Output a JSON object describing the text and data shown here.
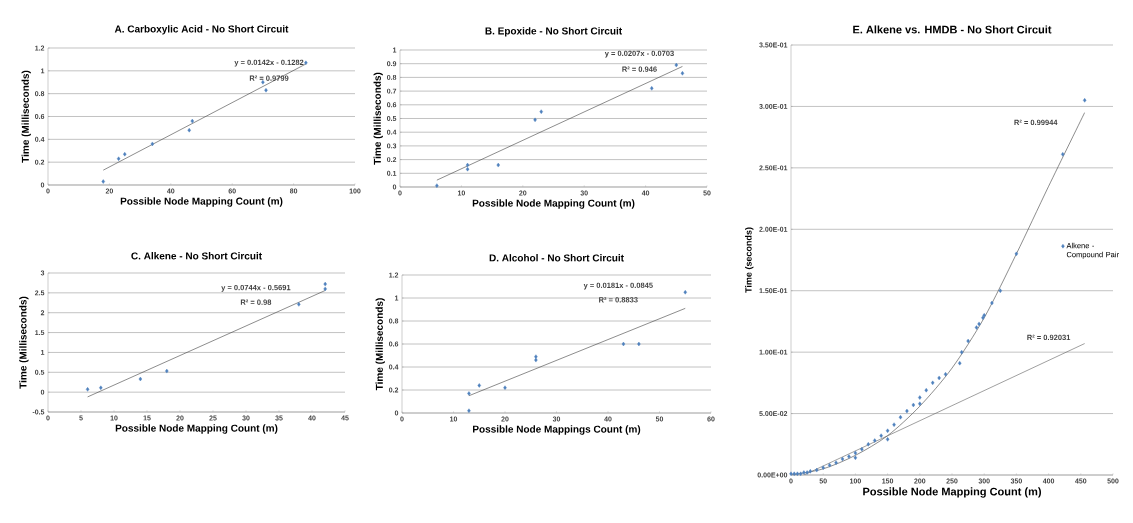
{
  "chart_data": [
    {
      "type": "scatter",
      "title": "A. Carboxylic Acid - No Short Circuit",
      "xlabel": "Possible Node Mapping Count (m)",
      "ylabel": "Time (Milliseconds)",
      "xlim": [
        0,
        100
      ],
      "xticks": [
        0,
        20,
        40,
        60,
        80,
        100
      ],
      "ylim": [
        0,
        1.2
      ],
      "yticks": [
        0,
        0.2,
        0.4,
        0.6,
        0.8,
        1,
        1.2
      ],
      "grid": "y",
      "annotations": [
        "y = 0.0142x - 0.1282",
        "R² = 0.9799"
      ],
      "series": [
        {
          "type": "scatter",
          "marker": "diamond",
          "color": "#4f81bd",
          "x": [
            18,
            23,
            25,
            34,
            46,
            47,
            70,
            71,
            84
          ],
          "values": [
            0.03,
            0.23,
            0.27,
            0.36,
            0.48,
            0.56,
            0.9,
            0.83,
            1.07
          ]
        },
        {
          "type": "line",
          "marker": "none",
          "color": "#404040",
          "x": [
            18,
            84
          ],
          "values": [
            0.13,
            1.06
          ]
        }
      ]
    },
    {
      "type": "scatter",
      "title": "B. Epoxide - No Short Circuit",
      "xlabel": "Possible Node Mapping Count (m)",
      "ylabel": "Time (Milliseconds)",
      "xlim": [
        0,
        50
      ],
      "xticks": [
        0,
        10,
        20,
        30,
        40,
        50
      ],
      "ylim": [
        0,
        1
      ],
      "yticks": [
        0,
        0.1,
        0.2,
        0.3,
        0.4,
        0.5,
        0.6,
        0.7,
        0.8,
        0.9,
        1
      ],
      "grid": "y",
      "annotations": [
        "y = 0.0207x - 0.0703",
        "R² = 0.946"
      ],
      "series": [
        {
          "type": "scatter",
          "marker": "diamond",
          "color": "#4f81bd",
          "x": [
            6,
            11,
            11,
            16,
            22,
            23,
            41,
            45,
            46
          ],
          "values": [
            0.01,
            0.16,
            0.13,
            0.16,
            0.49,
            0.55,
            0.72,
            0.89,
            0.83
          ]
        },
        {
          "type": "line",
          "marker": "none",
          "color": "#404040",
          "x": [
            6,
            46
          ],
          "values": [
            0.05,
            0.88
          ]
        }
      ]
    },
    {
      "type": "scatter",
      "title": "C. Alkene - No Short Circuit",
      "xlabel": "Possible Node Mapping Count (m)",
      "ylabel": "Time (Milliseconds)",
      "xlim": [
        0,
        45
      ],
      "xticks": [
        0,
        5,
        10,
        15,
        20,
        25,
        30,
        35,
        40,
        45
      ],
      "ylim": [
        -0.5,
        3
      ],
      "yticks": [
        -0.5,
        0,
        0.5,
        1,
        1.5,
        2,
        2.5,
        3
      ],
      "grid": "y",
      "annotations": [
        "y = 0.0744x - 0.5691",
        "R² = 0.98"
      ],
      "series": [
        {
          "type": "scatter",
          "marker": "diamond",
          "color": "#4f81bd",
          "x": [
            6,
            8,
            14,
            18,
            38,
            42,
            42
          ],
          "values": [
            0.07,
            0.11,
            0.33,
            0.53,
            2.21,
            2.6,
            2.72
          ]
        },
        {
          "type": "line",
          "marker": "none",
          "color": "#404040",
          "x": [
            6,
            42
          ],
          "values": [
            -0.12,
            2.56
          ]
        }
      ]
    },
    {
      "type": "scatter",
      "title": "D. Alcohol - No Short Circuit",
      "xlabel": "Possible Node Mappings Count (m)",
      "ylabel": "Time (Milliseconds)",
      "xlim": [
        0,
        60
      ],
      "xticks": [
        0,
        10,
        20,
        30,
        40,
        50,
        60
      ],
      "ylim": [
        0,
        1.2
      ],
      "yticks": [
        0,
        0.2,
        0.4,
        0.6,
        0.8,
        1,
        1.2
      ],
      "grid": "y",
      "annotations": [
        "y = 0.0181x - 0.0845",
        "R² = 0.8833"
      ],
      "series": [
        {
          "type": "scatter",
          "marker": "diamond",
          "color": "#4f81bd",
          "x": [
            13,
            13,
            15,
            20,
            26,
            26,
            43,
            46,
            55
          ],
          "values": [
            0.02,
            0.17,
            0.24,
            0.22,
            0.46,
            0.49,
            0.6,
            0.6,
            1.05
          ]
        },
        {
          "type": "line",
          "marker": "none",
          "color": "#404040",
          "x": [
            13,
            55
          ],
          "values": [
            0.15,
            0.91
          ]
        }
      ]
    },
    {
      "type": "scatter",
      "title": "E. Alkene vs. HMDB - No Short Circuit",
      "xlabel": "Possible Node Mapping Count (m)",
      "ylabel": "Time (seconds)",
      "xlim": [
        0,
        500
      ],
      "xticks": [
        0,
        50,
        100,
        150,
        200,
        250,
        300,
        350,
        400,
        450,
        500
      ],
      "ylim": [
        0,
        0.35
      ],
      "yticks": [
        {
          "value": 0,
          "label": "0.00E+00"
        },
        {
          "value": 0.05,
          "label": "5.00E-02"
        },
        {
          "value": 0.1,
          "label": "1.00E-01"
        },
        {
          "value": 0.15,
          "label": "1.50E-01"
        },
        {
          "value": 0.2,
          "label": "2.00E-01"
        },
        {
          "value": 0.25,
          "label": "2.50E-01"
        },
        {
          "value": 0.3,
          "label": "3.00E-01"
        },
        {
          "value": 0.35,
          "label": "3.50E-01"
        }
      ],
      "grid": "y",
      "legend": "right",
      "annotations": [
        "R² = 0.99944",
        "R² = 0.92031"
      ],
      "series": [
        {
          "type": "scatter",
          "marker": "diamond",
          "name": "Alkene - Compound Pair",
          "color": "#4f81bd",
          "x": [
            0,
            5,
            10,
            15,
            20,
            25,
            30,
            40,
            50,
            60,
            70,
            80,
            90,
            100,
            100,
            110,
            120,
            130,
            140,
            150,
            150,
            160,
            170,
            180,
            190,
            200,
            200,
            210,
            220,
            230,
            240,
            262,
            265,
            275,
            288,
            292,
            298,
            300,
            312,
            325,
            350,
            422,
            456
          ],
          "values": [
            0.001,
            0.001,
            0.001,
            0.001,
            0.002,
            0.002,
            0.003,
            0.004,
            0.006,
            0.008,
            0.01,
            0.013,
            0.015,
            0.018,
            0.014,
            0.021,
            0.025,
            0.028,
            0.032,
            0.036,
            0.029,
            0.041,
            0.047,
            0.052,
            0.057,
            0.063,
            0.058,
            0.069,
            0.075,
            0.079,
            0.082,
            0.091,
            0.1,
            0.109,
            0.12,
            0.123,
            0.128,
            0.13,
            0.14,
            0.15,
            0.18,
            0.261,
            0.305
          ]
        },
        {
          "type": "line",
          "marker": "none",
          "color": "#404040",
          "x": [
            0,
            50,
            100,
            150,
            200,
            250,
            300,
            350,
            400,
            456
          ],
          "values": [
            0,
            0.005,
            0.016,
            0.032,
            0.056,
            0.087,
            0.128,
            0.18,
            0.235,
            0.295
          ]
        },
        {
          "type": "line",
          "marker": "none",
          "color": "#606060",
          "x": [
            20,
            456
          ],
          "values": [
            0,
            0.107
          ]
        }
      ]
    }
  ]
}
